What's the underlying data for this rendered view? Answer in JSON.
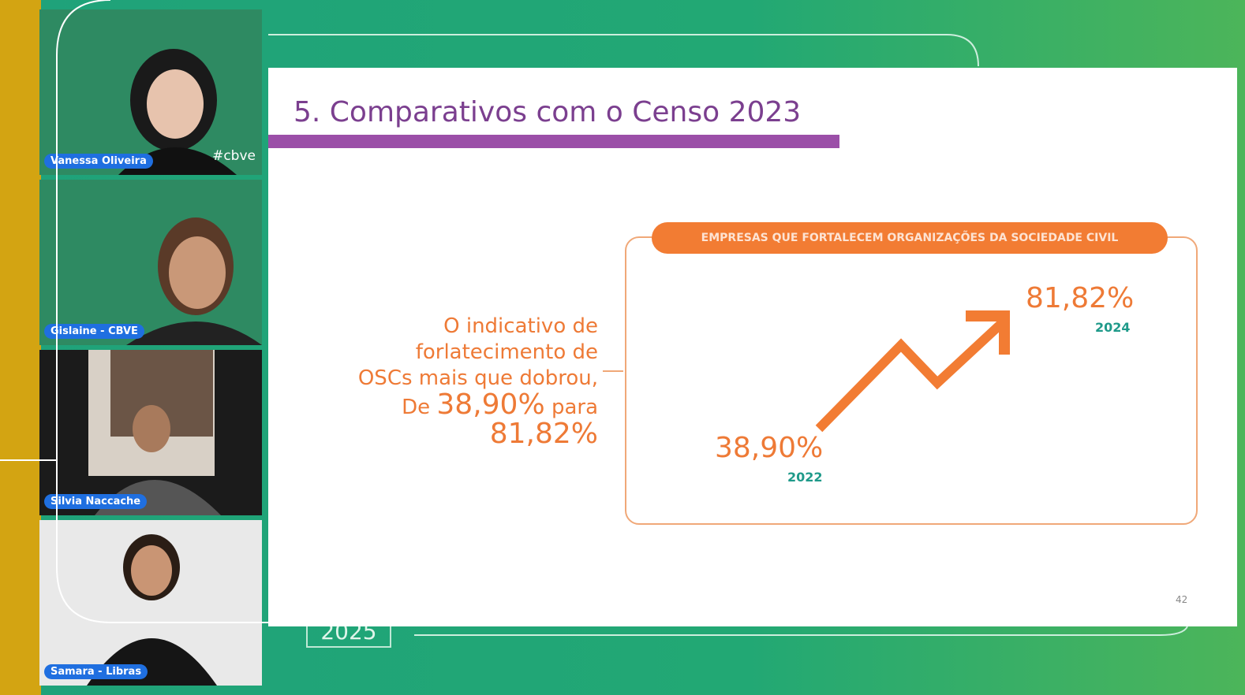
{
  "participants": [
    {
      "name": "Vanessa Oliveira"
    },
    {
      "name": "Gislaine - CBVE"
    },
    {
      "name": "Silvia Naccache"
    },
    {
      "name": "Samara - Libras"
    }
  ],
  "hashtag": "#cbve",
  "background_year": "2025",
  "slide": {
    "title": "5. Comparativos com o Censo 2023",
    "box_title": "EMPRESAS QUE FORTALECEM ORGANIZAÇÕES DA SOCIEDADE CIVIL",
    "start_value": "38,90%",
    "start_year": "2022",
    "end_value": "81,82%",
    "end_year": "2024",
    "text_lines": [
      "O indicativo de",
      "forlatecimento de",
      "OSCs mais que dobrou,"
    ],
    "text_from": "De",
    "text_from_value": "38,90%",
    "text_to": "para",
    "text_to_value": "81,82%",
    "page_number": "42"
  }
}
